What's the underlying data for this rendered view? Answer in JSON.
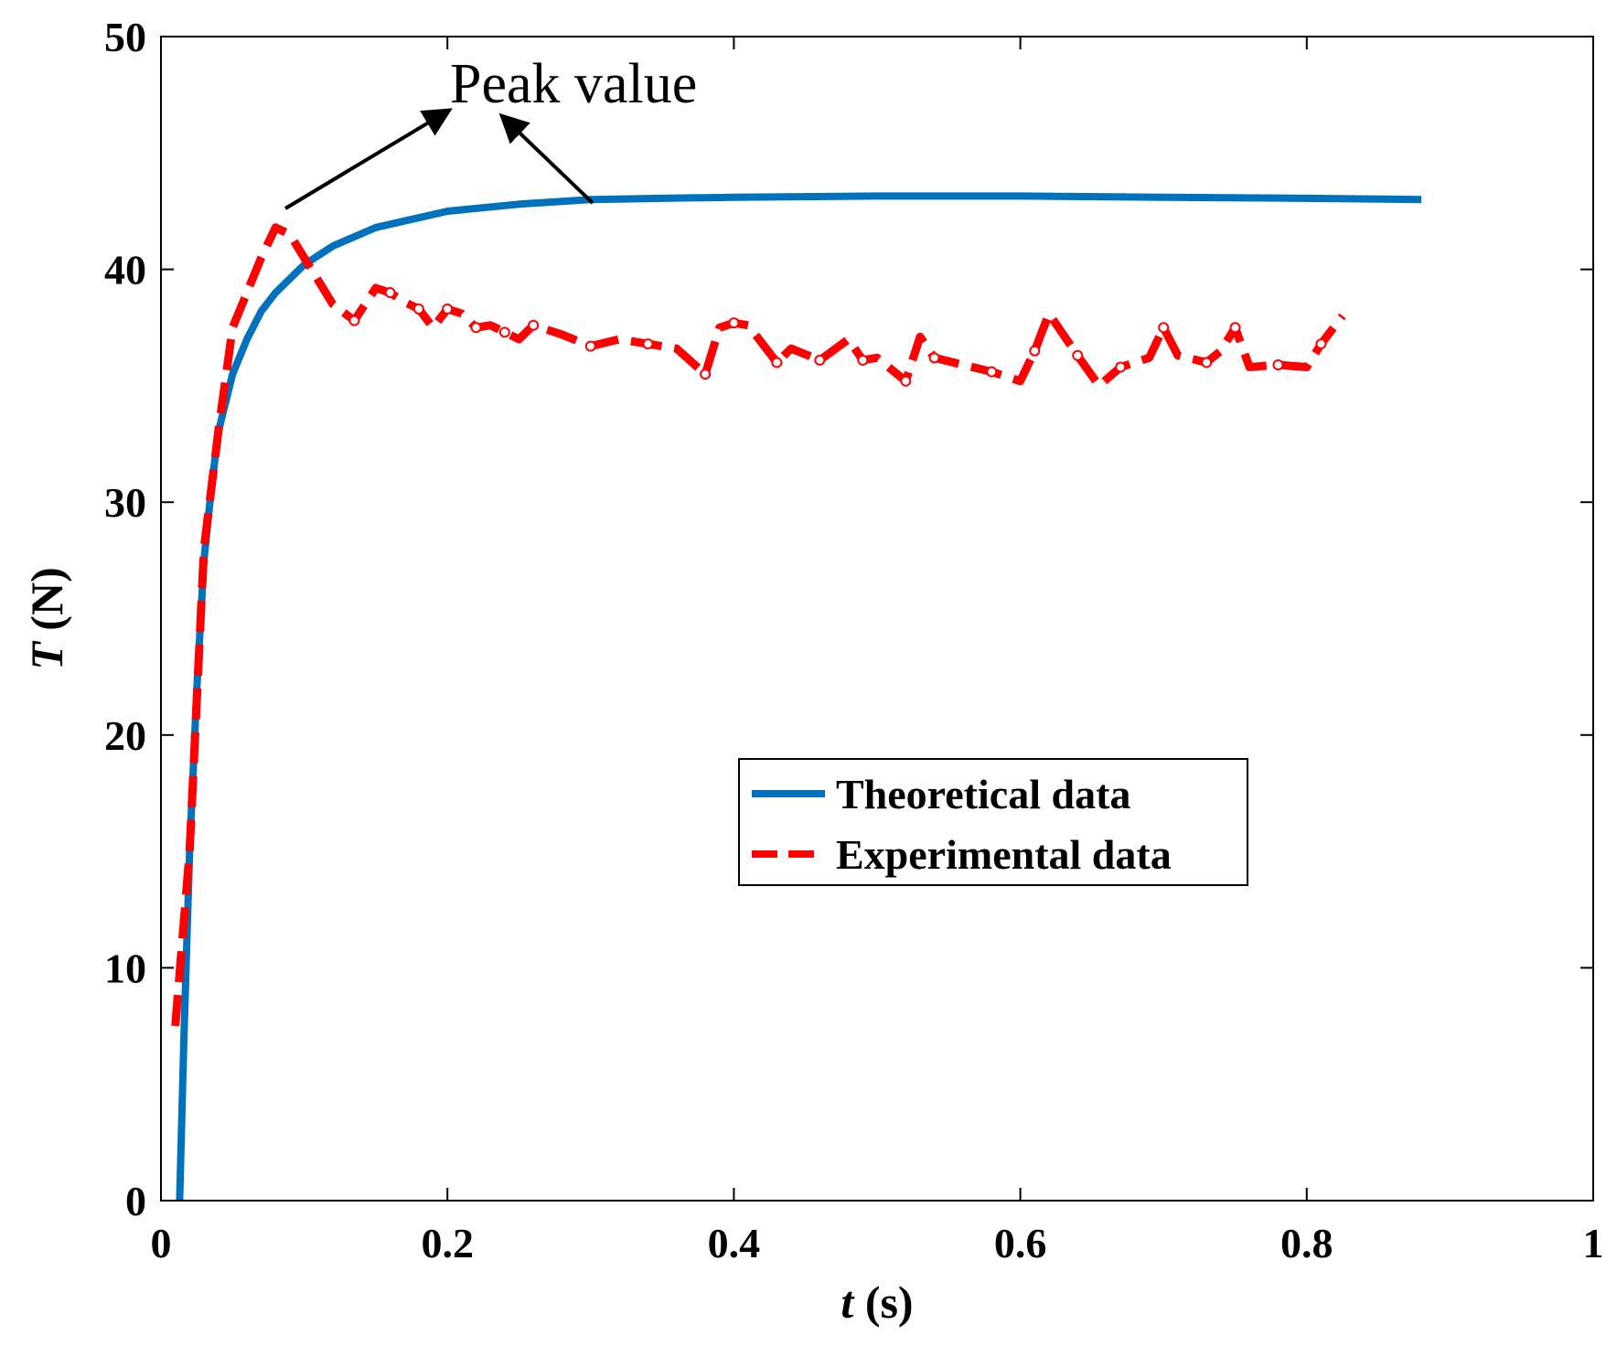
{
  "chart_data": {
    "type": "line",
    "xlabel_symbol": "t",
    "xlabel_unit": "(s)",
    "ylabel_symbol": "T",
    "ylabel_unit": "(N)",
    "xlim": [
      0,
      1
    ],
    "ylim": [
      0,
      50
    ],
    "xticks": [
      "0",
      "0.2",
      "0.4",
      "0.6",
      "0.8",
      "1"
    ],
    "yticks": [
      "0",
      "10",
      "20",
      "30",
      "40",
      "50"
    ],
    "xtick_values": [
      0,
      0.2,
      0.4,
      0.6,
      0.8,
      1
    ],
    "ytick_values": [
      0,
      10,
      20,
      30,
      40,
      50
    ],
    "grid": false,
    "legend_position": "center-right",
    "annotation": {
      "text": "Peak value"
    },
    "series": [
      {
        "name": "Theoretical data",
        "color": "#0072BD",
        "style": "solid",
        "x": [
          0.013,
          0.016,
          0.02,
          0.025,
          0.03,
          0.035,
          0.04,
          0.05,
          0.06,
          0.07,
          0.08,
          0.1,
          0.12,
          0.15,
          0.2,
          0.25,
          0.3,
          0.35,
          0.4,
          0.5,
          0.6,
          0.7,
          0.8,
          0.88
        ],
        "y": [
          0,
          7,
          15,
          22,
          27.5,
          30.5,
          33,
          35.5,
          37,
          38.2,
          39,
          40.2,
          41,
          41.8,
          42.5,
          42.8,
          43,
          43.05,
          43.1,
          43.15,
          43.15,
          43.1,
          43.05,
          43
        ]
      },
      {
        "name": "Experimental data",
        "color": "#FF0000",
        "style": "dashed",
        "x": [
          0.01,
          0.02,
          0.03,
          0.04,
          0.05,
          0.06,
          0.07,
          0.08,
          0.09,
          0.1,
          0.11,
          0.12,
          0.135,
          0.15,
          0.16,
          0.17,
          0.18,
          0.19,
          0.2,
          0.21,
          0.22,
          0.23,
          0.24,
          0.25,
          0.26,
          0.28,
          0.3,
          0.32,
          0.34,
          0.36,
          0.38,
          0.39,
          0.4,
          0.41,
          0.43,
          0.44,
          0.46,
          0.48,
          0.49,
          0.5,
          0.52,
          0.53,
          0.54,
          0.56,
          0.58,
          0.6,
          0.61,
          0.62,
          0.64,
          0.655,
          0.67,
          0.69,
          0.7,
          0.71,
          0.73,
          0.74,
          0.75,
          0.76,
          0.78,
          0.8,
          0.81,
          0.825
        ],
        "y": [
          7.5,
          15,
          28,
          33,
          37.5,
          39,
          40.5,
          41.8,
          41.5,
          40.5,
          39.5,
          38.5,
          37.8,
          39.2,
          39,
          38.6,
          38.3,
          37.5,
          38.3,
          38.1,
          37.5,
          37.6,
          37.3,
          37,
          37.6,
          37.2,
          36.7,
          37,
          36.8,
          36.6,
          35.5,
          37.5,
          37.7,
          37.6,
          36,
          36.6,
          36.1,
          37,
          36.1,
          36.2,
          35.2,
          37.1,
          36.2,
          35.9,
          35.6,
          35.2,
          36.5,
          38.1,
          36.3,
          35,
          35.8,
          36.2,
          37.5,
          36.3,
          36,
          36.5,
          37.5,
          35.8,
          35.9,
          35.8,
          36.8,
          38
        ]
      }
    ]
  }
}
